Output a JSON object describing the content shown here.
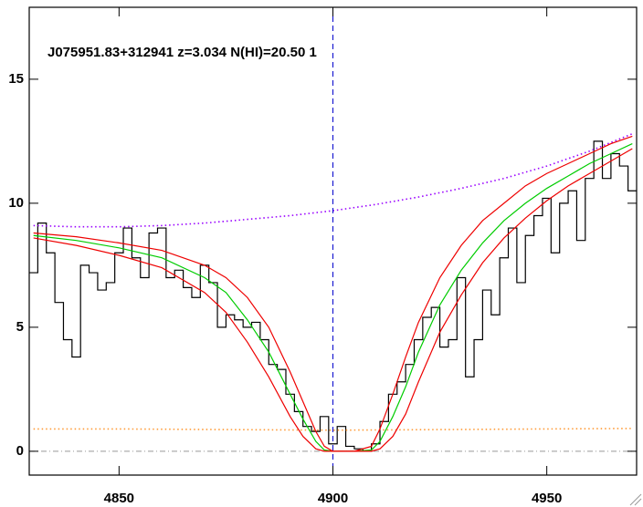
{
  "chart_data": {
    "type": "line",
    "title": "J075951.83+312941 z=3.034 N(HI)=20.50 1",
    "xlim": [
      4829,
      4971
    ],
    "ylim": [
      -0.96,
      17.9
    ],
    "xticks": [
      4850,
      4900,
      4950
    ],
    "yticks": [
      0,
      5,
      10,
      15
    ],
    "vline": {
      "value": 4900,
      "color": "#0000cc"
    },
    "hline": {
      "value": 0,
      "color": "#999999"
    },
    "series": [
      {
        "color": "#000000",
        "style": "steps",
        "x": [
          4830,
          4832,
          4834,
          4836,
          4838,
          4840,
          4842,
          4844,
          4846,
          4848,
          4850,
          4852,
          4854,
          4856,
          4858,
          4860,
          4862,
          4864,
          4866,
          4868,
          4870,
          4872,
          4874,
          4876,
          4878,
          4880,
          4882,
          4884,
          4886,
          4888,
          4890,
          4892,
          4894,
          4896,
          4898,
          4900,
          4902,
          4904,
          4906,
          4908,
          4910,
          4912,
          4914,
          4916,
          4918,
          4920,
          4922,
          4924,
          4926,
          4928,
          4930,
          4932,
          4934,
          4936,
          4938,
          4940,
          4942,
          4944,
          4946,
          4948,
          4950,
          4952,
          4954,
          4956,
          4958,
          4960,
          4962,
          4964,
          4966,
          4968,
          4970
        ],
        "values": [
          7.2,
          9.2,
          8.0,
          6.0,
          4.5,
          3.8,
          7.5,
          7.2,
          6.5,
          6.8,
          8.0,
          9.0,
          7.8,
          7.0,
          8.8,
          9.0,
          7.0,
          7.3,
          6.6,
          6.2,
          7.5,
          6.8,
          5.0,
          5.5,
          5.3,
          5.0,
          5.2,
          4.5,
          3.5,
          3.3,
          2.3,
          1.6,
          1.0,
          0.8,
          1.4,
          0.3,
          1.0,
          0.2,
          0.1,
          0.0,
          0.3,
          1.2,
          2.3,
          2.8,
          3.5,
          4.5,
          5.4,
          5.8,
          4.2,
          4.5,
          7.0,
          3.0,
          4.5,
          6.5,
          5.5,
          7.8,
          9.0,
          6.8,
          8.7,
          9.5,
          10.2,
          8.0,
          10.0,
          10.5,
          8.5,
          11.0,
          12.5,
          11.0,
          12.0,
          11.5,
          10.5
        ]
      },
      {
        "color": "#9900ff",
        "style": "dotted",
        "x": [
          4830,
          4840,
          4850,
          4860,
          4870,
          4880,
          4890,
          4900,
          4910,
          4920,
          4930,
          4940,
          4950,
          4960,
          4970
        ],
        "values": [
          9.1,
          9.05,
          9.05,
          9.1,
          9.2,
          9.35,
          9.5,
          9.7,
          9.95,
          10.25,
          10.6,
          11.0,
          11.5,
          12.1,
          12.8
        ]
      },
      {
        "color": "#ff9933",
        "style": "dotted",
        "x": [
          4830,
          4850,
          4870,
          4890,
          4900,
          4910,
          4930,
          4950,
          4970
        ],
        "values": [
          0.9,
          0.9,
          0.88,
          0.86,
          0.85,
          0.86,
          0.88,
          0.9,
          0.92
        ]
      },
      {
        "color": "#00cc00",
        "style": "solid",
        "x": [
          4830,
          4840,
          4850,
          4860,
          4870,
          4875,
          4880,
          4885,
          4890,
          4893,
          4896,
          4898,
          4900,
          4905,
          4909,
          4911,
          4914,
          4917,
          4920,
          4925,
          4930,
          4935,
          4940,
          4945,
          4950,
          4955,
          4960,
          4965,
          4970
        ],
        "values": [
          8.7,
          8.5,
          8.2,
          7.8,
          7.0,
          6.4,
          5.3,
          4.0,
          2.3,
          1.3,
          0.4,
          0.05,
          0,
          0,
          0.05,
          0.4,
          1.4,
          2.6,
          4.0,
          5.9,
          7.3,
          8.4,
          9.3,
          10.0,
          10.6,
          11.1,
          11.6,
          12.0,
          12.4
        ]
      },
      {
        "color": "#ee0000",
        "style": "solid",
        "x": [
          4830,
          4840,
          4850,
          4860,
          4870,
          4875,
          4880,
          4885,
          4890,
          4893,
          4896,
          4898,
          4900,
          4905,
          4909,
          4911,
          4914,
          4917,
          4920,
          4925,
          4930,
          4935,
          4940,
          4945,
          4950,
          4955,
          4960,
          4965,
          4970
        ],
        "values": [
          8.8,
          8.65,
          8.4,
          8.1,
          7.5,
          7.0,
          6.2,
          5.0,
          3.2,
          2.0,
          0.8,
          0.2,
          0,
          0,
          0.2,
          0.9,
          2.3,
          3.8,
          5.2,
          7.0,
          8.3,
          9.3,
          10.0,
          10.7,
          11.2,
          11.6,
          12.0,
          12.4,
          12.7
        ]
      },
      {
        "color": "#ee0000",
        "style": "solid",
        "x": [
          4830,
          4840,
          4850,
          4860,
          4870,
          4875,
          4880,
          4885,
          4890,
          4893,
          4896,
          4898,
          4900,
          4905,
          4909,
          4911,
          4914,
          4917,
          4920,
          4925,
          4930,
          4935,
          4940,
          4945,
          4950,
          4955,
          4960,
          4965,
          4970
        ],
        "values": [
          8.6,
          8.3,
          7.9,
          7.4,
          6.4,
          5.6,
          4.4,
          3.0,
          1.4,
          0.6,
          0.1,
          0,
          0,
          0,
          0,
          0.1,
          0.6,
          1.5,
          2.8,
          4.8,
          6.3,
          7.6,
          8.6,
          9.4,
          10.1,
          10.7,
          11.2,
          11.7,
          12.2
        ]
      }
    ]
  }
}
